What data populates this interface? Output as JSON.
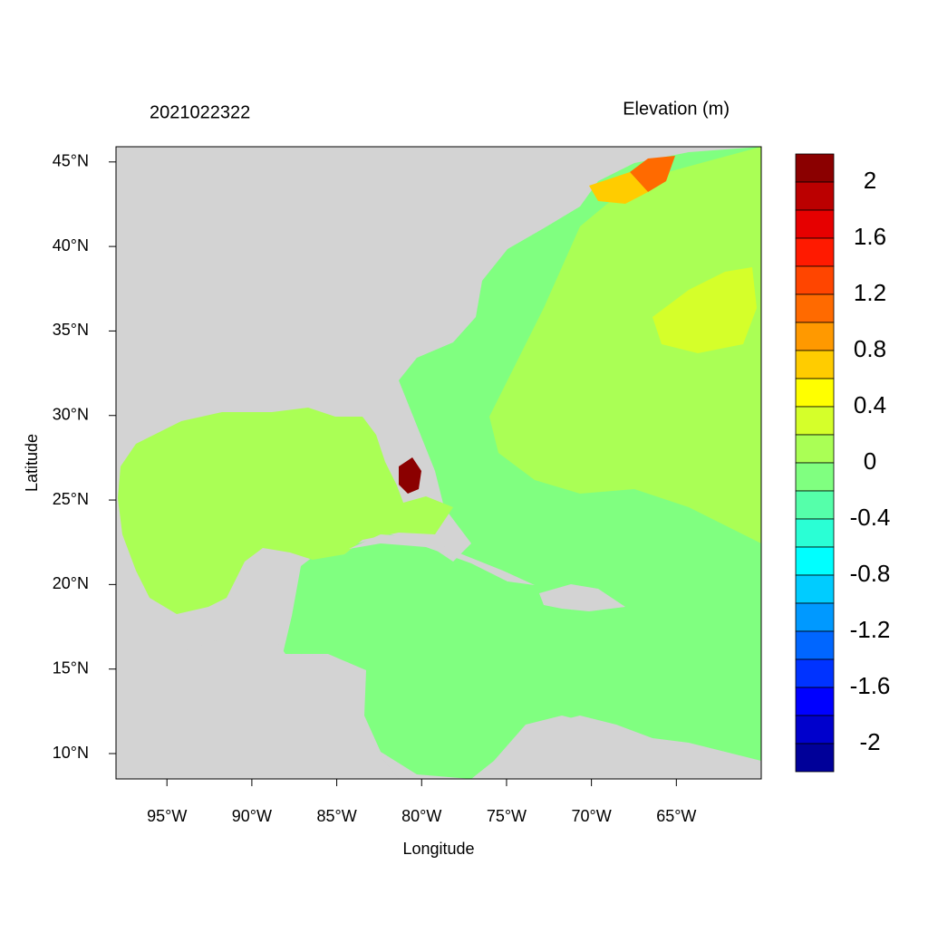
{
  "chart_data": {
    "type": "map",
    "title": "2021022322",
    "subtitle": "Elevation (m)",
    "x_label": "Longitude",
    "y_label": "Latitude",
    "xlim": [
      -98,
      -60
    ],
    "ylim": [
      8.5,
      45.9
    ],
    "xticks": [
      {
        "value": -95,
        "label": "95°W"
      },
      {
        "value": -90,
        "label": "90°W"
      },
      {
        "value": -85,
        "label": "85°W"
      },
      {
        "value": -80,
        "label": "80°W"
      },
      {
        "value": -75,
        "label": "75°W"
      },
      {
        "value": -70,
        "label": "70°W"
      },
      {
        "value": -65,
        "label": "65°W"
      }
    ],
    "yticks": [
      {
        "value": 10,
        "label": "10°N"
      },
      {
        "value": 15,
        "label": "15°N"
      },
      {
        "value": 20,
        "label": "20°N"
      },
      {
        "value": 25,
        "label": "25°N"
      },
      {
        "value": 30,
        "label": "30°N"
      },
      {
        "value": 35,
        "label": "35°N"
      },
      {
        "value": 40,
        "label": "40°N"
      },
      {
        "value": 45,
        "label": "45°N"
      }
    ],
    "colorbar": {
      "levels": [
        2.2,
        2,
        1.8,
        1.6,
        1.4,
        1.2,
        1,
        0.8,
        0.6,
        0.4,
        0.2,
        0,
        -0.2,
        -0.4,
        -0.6,
        -0.8,
        -1,
        -1.2,
        -1.4,
        -1.6,
        -1.8,
        -2,
        -2.2
      ],
      "colors": [
        "#8b0000",
        "#bb0000",
        "#e60000",
        "#ff1a00",
        "#ff4500",
        "#ff6a00",
        "#ff9900",
        "#ffcc00",
        "#ffff00",
        "#d5ff2a",
        "#aaff55",
        "#80ff80",
        "#55ffaa",
        "#2affd5",
        "#00ffff",
        "#00ccff",
        "#0099ff",
        "#0066ff",
        "#0033ff",
        "#0000ff",
        "#0000cc",
        "#000099"
      ],
      "ticks": [
        2,
        1.6,
        1.2,
        0.8,
        0.4,
        0,
        -0.4,
        -0.8,
        -1.2,
        -1.6,
        -2
      ]
    }
  }
}
